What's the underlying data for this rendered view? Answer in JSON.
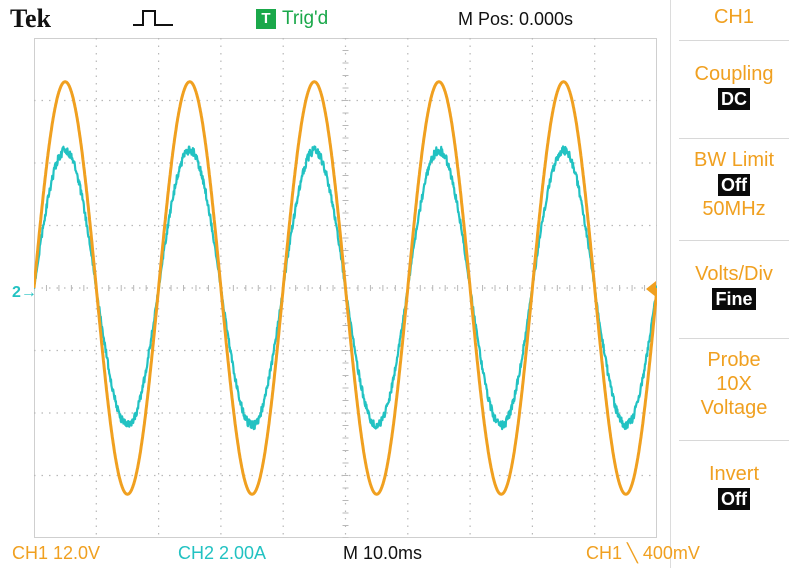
{
  "header": {
    "brand": "Tek",
    "acquisition_icon": "pulse-icon",
    "trigger_badge": "T",
    "trigger_status": "Trig'd",
    "horizontal_position": "M Pos: 0.000s"
  },
  "menu": {
    "title": "CH1",
    "items": [
      {
        "label": "Coupling",
        "value": "DC"
      },
      {
        "label": "BW Limit",
        "value": "Off",
        "extra": "50MHz"
      },
      {
        "label": "Volts/Div",
        "value": "Fine"
      },
      {
        "label": "Probe",
        "lines": [
          "10X",
          "Voltage"
        ]
      },
      {
        "label": "Invert",
        "value": "Off"
      }
    ]
  },
  "footer": {
    "ch1_scale": "CH1  12.0V",
    "ch2_scale": "CH2  2.00A",
    "timebase": "M 10.0ms",
    "trigger_info": "CH1 ╲ 400mV"
  },
  "markers": {
    "ch2_ground": "2→"
  },
  "colors": {
    "ch1": "#f0a020",
    "ch2": "#22c2c2",
    "trigger_badge": "#1aa84a",
    "grid": "#b8b8b8"
  },
  "waveforms": {
    "ch1": {
      "cycles": 5,
      "amplitude_div": 3.3,
      "shape": "sine"
    },
    "ch2": {
      "cycles": 5,
      "amplitude_div": 2.2,
      "shape": "sine-noisy"
    }
  }
}
